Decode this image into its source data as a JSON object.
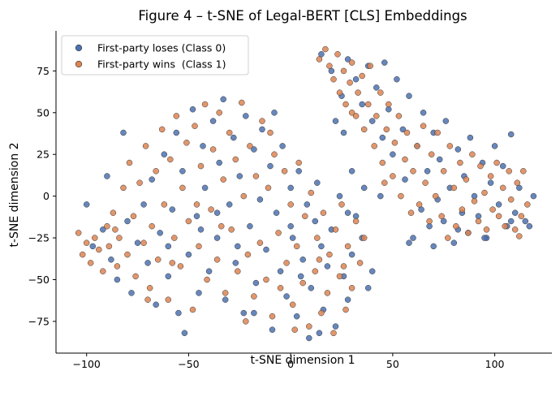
{
  "chart_data": {
    "type": "scatter",
    "title": "Figure 4 – t-SNE of Legal-BERT [CLS] Embeddings",
    "xlabel": "t-SNE dimension 1",
    "ylabel": "t-SNE dimension 2",
    "xlim": [
      -115,
      128
    ],
    "ylim": [
      -94,
      99
    ],
    "x_ticks": [
      -100,
      -50,
      0,
      50,
      100
    ],
    "x_tick_labels": [
      "−100",
      "−50",
      "0",
      "50",
      "100"
    ],
    "y_ticks": [
      -75,
      -50,
      -25,
      0,
      25,
      50,
      75
    ],
    "y_tick_labels": [
      "−75",
      "−50",
      "−25",
      "0",
      "25",
      "50",
      "75"
    ],
    "grid": false,
    "legend_position": "upper-left",
    "series": [
      {
        "name": "First-party loses (Class 0)",
        "color": "#4c72b0",
        "points": [
          [
            -97,
            -30
          ],
          [
            -92,
            -20
          ],
          [
            -88,
            -38
          ],
          [
            -85,
            -50
          ],
          [
            -80,
            -15
          ],
          [
            -78,
            -58
          ],
          [
            -75,
            -28
          ],
          [
            -72,
            -5
          ],
          [
            -70,
            -40
          ],
          [
            -68,
            10
          ],
          [
            -66,
            -65
          ],
          [
            -64,
            -22
          ],
          [
            -62,
            25
          ],
          [
            -60,
            -48
          ],
          [
            -58,
            -8
          ],
          [
            -56,
            38
          ],
          [
            -55,
            -70
          ],
          [
            -53,
            15
          ],
          [
            -50,
            -35
          ],
          [
            -48,
            52
          ],
          [
            -46,
            -12
          ],
          [
            -45,
            -58
          ],
          [
            -43,
            30
          ],
          [
            -42,
            5
          ],
          [
            -40,
            -45
          ],
          [
            -38,
            45
          ],
          [
            -36,
            -25
          ],
          [
            -35,
            20
          ],
          [
            -33,
            58
          ],
          [
            -32,
            -62
          ],
          [
            -30,
            -5
          ],
          [
            -28,
            35
          ],
          [
            -27,
            -40
          ],
          [
            -25,
            12
          ],
          [
            -23,
            -70
          ],
          [
            -22,
            48
          ],
          [
            -20,
            -18
          ],
          [
            -18,
            28
          ],
          [
            -17,
            -52
          ],
          [
            -15,
            -2
          ],
          [
            -14,
            40
          ],
          [
            -12,
            -32
          ],
          [
            -10,
            18
          ],
          [
            -9,
            -80
          ],
          [
            -7,
            -10
          ],
          [
            -5,
            -45
          ],
          [
            -4,
            30
          ],
          [
            -2,
            -60
          ],
          [
            0,
            5
          ],
          [
            1,
            -25
          ],
          [
            3,
            -72
          ],
          [
            4,
            15
          ],
          [
            6,
            -38
          ],
          [
            8,
            -5
          ],
          [
            9,
            -85
          ],
          [
            10,
            -55
          ],
          [
            12,
            -15
          ],
          [
            13,
            8
          ],
          [
            15,
            -30
          ],
          [
            16,
            -68
          ],
          [
            18,
            -42
          ],
          [
            20,
            -20
          ],
          [
            22,
            -78
          ],
          [
            24,
            0
          ],
          [
            26,
            -48
          ],
          [
            28,
            -62
          ],
          [
            30,
            -35
          ],
          [
            32,
            -12
          ],
          [
            35,
            -25
          ],
          [
            38,
            -55
          ],
          [
            40,
            -45
          ],
          [
            -90,
            12
          ],
          [
            -82,
            38
          ],
          [
            -100,
            -5
          ],
          [
            -52,
            -82
          ],
          [
            -44,
            -20
          ],
          [
            -26,
            -30
          ],
          [
            -8,
            50
          ],
          [
            14,
            -82
          ],
          [
            0,
            -18
          ],
          [
            -60,
            -30
          ],
          [
            -36,
            -10
          ],
          [
            -18,
            -70
          ],
          [
            5,
            -48
          ],
          [
            28,
            -10
          ],
          [
            15,
            85
          ],
          [
            20,
            75
          ],
          [
            25,
            60
          ],
          [
            28,
            82
          ],
          [
            32,
            70
          ],
          [
            35,
            55
          ],
          [
            38,
            78
          ],
          [
            40,
            45
          ],
          [
            42,
            65
          ],
          [
            45,
            35
          ],
          [
            46,
            80
          ],
          [
            48,
            52
          ],
          [
            50,
            25
          ],
          [
            52,
            70
          ],
          [
            55,
            40
          ],
          [
            56,
            10
          ],
          [
            58,
            60
          ],
          [
            60,
            -25
          ],
          [
            62,
            30
          ],
          [
            64,
            -8
          ],
          [
            65,
            50
          ],
          [
            67,
            15
          ],
          [
            68,
            -18
          ],
          [
            70,
            38
          ],
          [
            72,
            -2
          ],
          [
            73,
            22
          ],
          [
            75,
            -15
          ],
          [
            76,
            45
          ],
          [
            78,
            5
          ],
          [
            80,
            -28
          ],
          [
            82,
            28
          ],
          [
            84,
            -10
          ],
          [
            85,
            12
          ],
          [
            87,
            -22
          ],
          [
            88,
            35
          ],
          [
            90,
            0
          ],
          [
            92,
            -12
          ],
          [
            94,
            20
          ],
          [
            96,
            -25
          ],
          [
            98,
            8
          ],
          [
            100,
            30
          ],
          [
            102,
            -5
          ],
          [
            104,
            18
          ],
          [
            106,
            -18
          ],
          [
            108,
            37
          ],
          [
            110,
            -10
          ],
          [
            112,
            5
          ],
          [
            115,
            -15
          ],
          [
            117,
            -18
          ],
          [
            119,
            0
          ],
          [
            22,
            45
          ],
          [
            30,
            15
          ],
          [
            44,
            0
          ],
          [
            58,
            -28
          ],
          [
            70,
            -30
          ],
          [
            82,
            -20
          ],
          [
            95,
            -25
          ],
          [
            108,
            -15
          ],
          [
            26,
            38
          ],
          [
            36,
            5
          ]
        ]
      },
      {
        "name": "First-party wins  (Class 1)",
        "color": "#dd8452",
        "points": [
          [
            -104,
            -22
          ],
          [
            -102,
            -35
          ],
          [
            -100,
            -28
          ],
          [
            -98,
            -40
          ],
          [
            -96,
            -25
          ],
          [
            -94,
            -32
          ],
          [
            -92,
            -45
          ],
          [
            -90,
            -18
          ],
          [
            -89,
            -30
          ],
          [
            -87,
            -10
          ],
          [
            -85,
            -42
          ],
          [
            -84,
            -25
          ],
          [
            -82,
            5
          ],
          [
            -80,
            -35
          ],
          [
            -79,
            20
          ],
          [
            -77,
            -12
          ],
          [
            -76,
            -48
          ],
          [
            -74,
            8
          ],
          [
            -72,
            -28
          ],
          [
            -71,
            30
          ],
          [
            -69,
            -55
          ],
          [
            -68,
            -18
          ],
          [
            -66,
            15
          ],
          [
            -65,
            -38
          ],
          [
            -63,
            40
          ],
          [
            -62,
            -5
          ],
          [
            -60,
            -62
          ],
          [
            -59,
            22
          ],
          [
            -57,
            -25
          ],
          [
            -56,
            48
          ],
          [
            -54,
            -42
          ],
          [
            -53,
            5
          ],
          [
            -51,
            32
          ],
          [
            -50,
            -15
          ],
          [
            -48,
            -68
          ],
          [
            -47,
            42
          ],
          [
            -45,
            -30
          ],
          [
            -44,
            18
          ],
          [
            -42,
            55
          ],
          [
            -41,
            -50
          ],
          [
            -39,
            -8
          ],
          [
            -38,
            28
          ],
          [
            -36,
            -38
          ],
          [
            -35,
            50
          ],
          [
            -33,
            10
          ],
          [
            -32,
            -58
          ],
          [
            -30,
            38
          ],
          [
            -29,
            -20
          ],
          [
            -27,
            22
          ],
          [
            -26,
            -45
          ],
          [
            -24,
            56
          ],
          [
            -23,
            0
          ],
          [
            -21,
            -35
          ],
          [
            -20,
            30
          ],
          [
            -18,
            -60
          ],
          [
            -17,
            12
          ],
          [
            -15,
            -28
          ],
          [
            -14,
            45
          ],
          [
            -12,
            -50
          ],
          [
            -11,
            5
          ],
          [
            -9,
            -72
          ],
          [
            -8,
            25
          ],
          [
            -6,
            -22
          ],
          [
            -5,
            -55
          ],
          [
            -3,
            15
          ],
          [
            -2,
            -40
          ],
          [
            0,
            -5
          ],
          [
            1,
            -65
          ],
          [
            3,
            -30
          ],
          [
            4,
            20
          ],
          [
            6,
            -52
          ],
          [
            7,
            -12
          ],
          [
            9,
            -78
          ],
          [
            10,
            2
          ],
          [
            12,
            -45
          ],
          [
            13,
            -25
          ],
          [
            15,
            -70
          ],
          [
            16,
            -10
          ],
          [
            18,
            -58
          ],
          [
            19,
            -35
          ],
          [
            21,
            -82
          ],
          [
            22,
            -20
          ],
          [
            24,
            -48
          ],
          [
            25,
            -5
          ],
          [
            27,
            -68
          ],
          [
            28,
            -30
          ],
          [
            30,
            -55
          ],
          [
            32,
            -15
          ],
          [
            34,
            -40
          ],
          [
            36,
            -25
          ],
          [
            -86,
            -20
          ],
          [
            -70,
            -62
          ],
          [
            -58,
            -40
          ],
          [
            -46,
            -5
          ],
          [
            -34,
            -18
          ],
          [
            -22,
            -75
          ],
          [
            -10,
            38
          ],
          [
            2,
            -80
          ],
          [
            14,
            -38
          ],
          [
            26,
            -42
          ],
          [
            14,
            82
          ],
          [
            17,
            88
          ],
          [
            19,
            78
          ],
          [
            21,
            70
          ],
          [
            23,
            85
          ],
          [
            24,
            62
          ],
          [
            26,
            75
          ],
          [
            27,
            55
          ],
          [
            29,
            68
          ],
          [
            30,
            80
          ],
          [
            32,
            48
          ],
          [
            33,
            62
          ],
          [
            35,
            72
          ],
          [
            36,
            40
          ],
          [
            38,
            55
          ],
          [
            39,
            78
          ],
          [
            41,
            30
          ],
          [
            42,
            48
          ],
          [
            44,
            62
          ],
          [
            45,
            20
          ],
          [
            47,
            40
          ],
          [
            48,
            55
          ],
          [
            50,
            12
          ],
          [
            51,
            32
          ],
          [
            53,
            48
          ],
          [
            54,
            0
          ],
          [
            56,
            22
          ],
          [
            57,
            38
          ],
          [
            59,
            -10
          ],
          [
            60,
            15
          ],
          [
            62,
            30
          ],
          [
            63,
            -5
          ],
          [
            65,
            42
          ],
          [
            66,
            8
          ],
          [
            68,
            -15
          ],
          [
            69,
            25
          ],
          [
            71,
            0
          ],
          [
            72,
            38
          ],
          [
            74,
            -12
          ],
          [
            75,
            15
          ],
          [
            77,
            -25
          ],
          [
            78,
            30
          ],
          [
            80,
            5
          ],
          [
            81,
            -18
          ],
          [
            83,
            20
          ],
          [
            84,
            -8
          ],
          [
            86,
            10
          ],
          [
            87,
            -22
          ],
          [
            89,
            25
          ],
          [
            90,
            -3
          ],
          [
            92,
            -15
          ],
          [
            93,
            18
          ],
          [
            95,
            2
          ],
          [
            96,
            -20
          ],
          [
            98,
            12
          ],
          [
            99,
            -8
          ],
          [
            101,
            20
          ],
          [
            102,
            -12
          ],
          [
            104,
            5
          ],
          [
            105,
            -18
          ],
          [
            107,
            15
          ],
          [
            108,
            -2
          ],
          [
            110,
            -20
          ],
          [
            111,
            8
          ],
          [
            113,
            -12
          ],
          [
            114,
            15
          ],
          [
            116,
            -5
          ],
          [
            112,
            -24
          ],
          [
            30,
            50
          ],
          [
            46,
            8
          ]
        ]
      }
    ]
  }
}
